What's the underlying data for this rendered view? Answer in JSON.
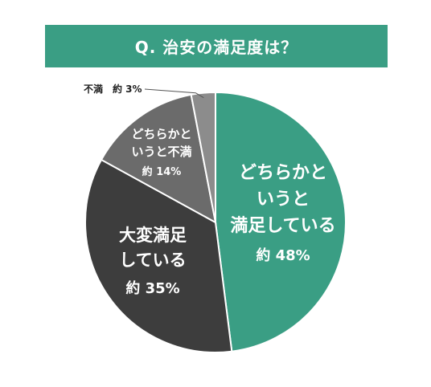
{
  "title": "Q. 治安の満足度は？",
  "colors": {
    "banner": "#3a9e84",
    "slice_very_satisfied": "#3d3d3d",
    "slice_somewhat_satisfied": "#3a9e84",
    "slice_somewhat_dissatisfied": "#6b6b6b",
    "slice_dissatisfied": "#8c8c8c",
    "slice_border": "#ffffff",
    "label_light": "#ffffff",
    "label_dark": "#222222"
  },
  "chart_data": {
    "type": "pie",
    "title": "Q. 治安の満足度は？",
    "slices": [
      {
        "name": "どちらかというと満足している",
        "label_lines": [
          "どちらかと",
          "いうと",
          "満足している"
        ],
        "value_label": "約 48%",
        "value": 48,
        "color": "#3a9e84",
        "text_color": "#ffffff"
      },
      {
        "name": "大変満足している",
        "label_lines": [
          "大変満足",
          "している"
        ],
        "value_label": "約 35%",
        "value": 35,
        "color": "#3d3d3d",
        "text_color": "#ffffff"
      },
      {
        "name": "どちらかというと不満",
        "label_lines": [
          "どちらかと",
          "いうと不満"
        ],
        "value_label": "約 14%",
        "value": 14,
        "color": "#6b6b6b",
        "text_color": "#ffffff"
      },
      {
        "name": "不満",
        "label_lines": [
          "不満"
        ],
        "value_label": "約 3%",
        "value": 3,
        "color": "#8c8c8c",
        "text_color": "#222222",
        "outside_label": "不満　約 3%"
      }
    ]
  }
}
